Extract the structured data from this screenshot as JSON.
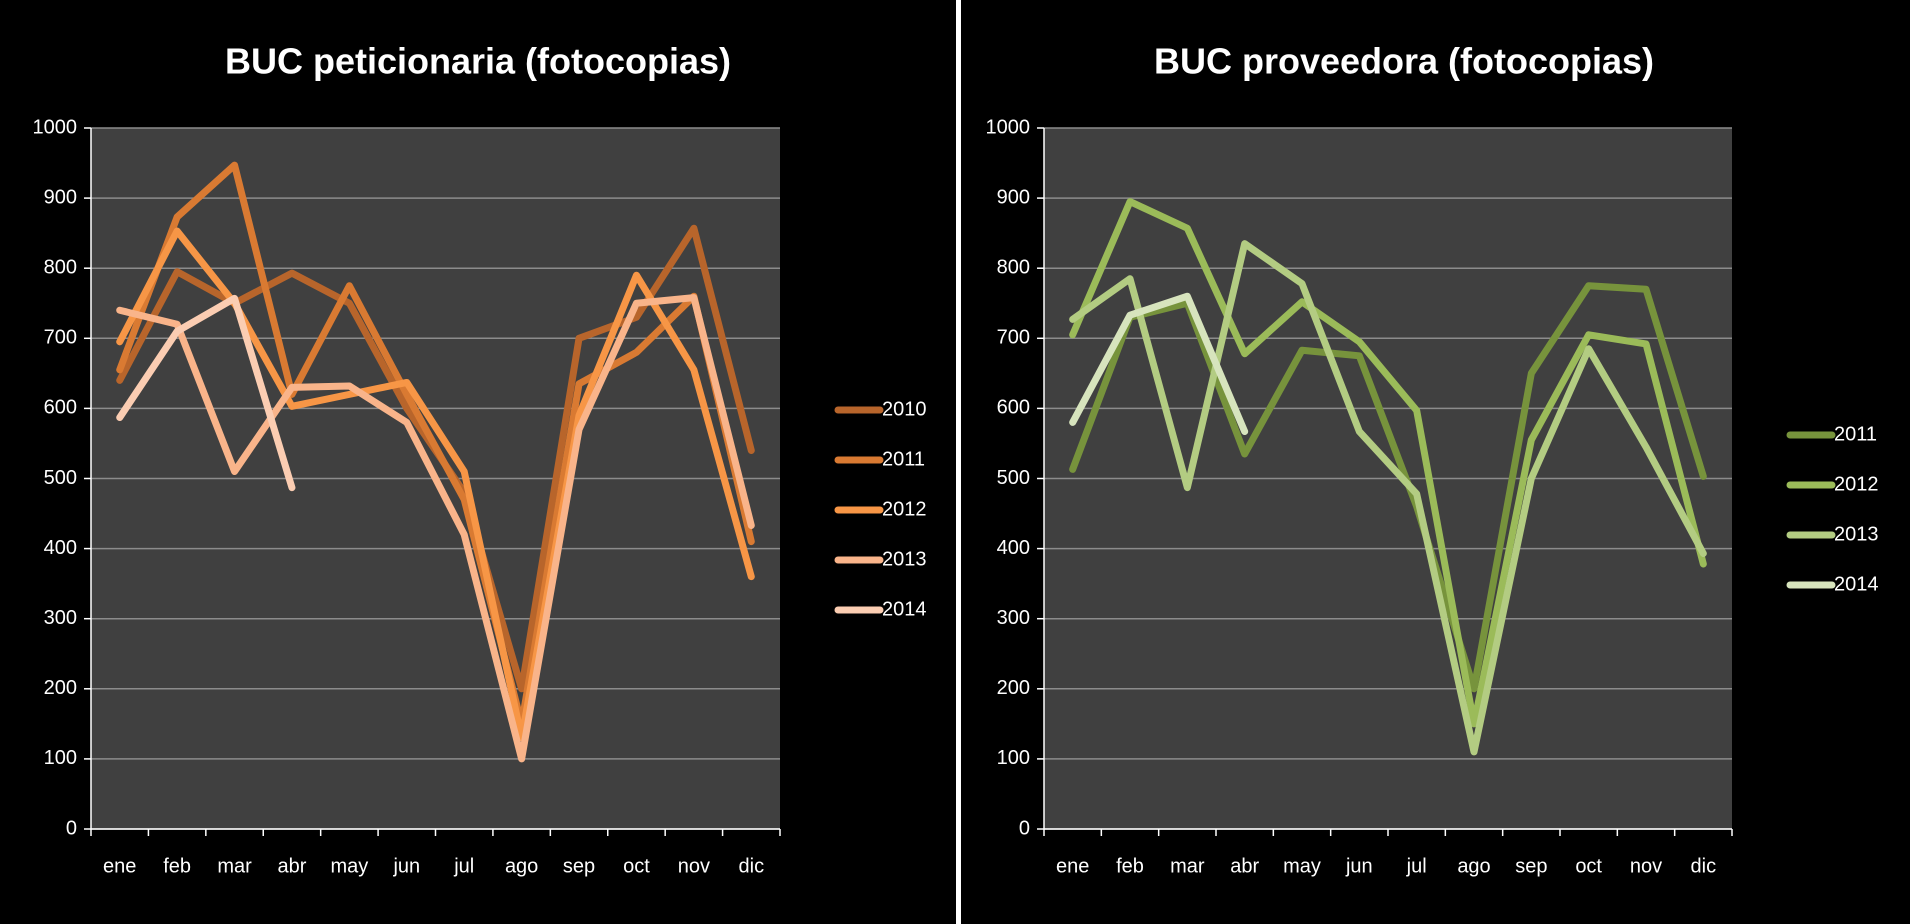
{
  "chart_data": [
    {
      "type": "line",
      "title": "BUC peticionaria (fotocopias)",
      "categories": [
        "ene",
        "feb",
        "mar",
        "abr",
        "may",
        "jun",
        "jul",
        "ago",
        "sep",
        "oct",
        "nov",
        "dic"
      ],
      "ylim": [
        0,
        1000
      ],
      "yticks": [
        0,
        100,
        200,
        300,
        400,
        500,
        600,
        700,
        800,
        900,
        1000
      ],
      "grid": true,
      "legend": "right",
      "series": [
        {
          "name": "2010",
          "color": "#b8652b",
          "values": [
            640,
            795,
            750,
            793,
            750,
            600,
            480,
            200,
            700,
            730,
            857,
            540
          ]
        },
        {
          "name": "2011",
          "color": "#d97a32",
          "values": [
            655,
            873,
            947,
            620,
            775,
            620,
            470,
            150,
            635,
            680,
            760,
            410
          ]
        },
        {
          "name": "2012",
          "color": "#f79646",
          "values": [
            695,
            853,
            750,
            603,
            620,
            637,
            510,
            130,
            590,
            790,
            655,
            360
          ]
        },
        {
          "name": "2013",
          "color": "#f9b48a",
          "values": [
            740,
            720,
            510,
            630,
            632,
            580,
            420,
            100,
            570,
            750,
            758,
            433
          ]
        },
        {
          "name": "2014",
          "color": "#fbcdb2",
          "values": [
            587,
            710,
            757,
            487,
            null,
            null,
            null,
            null,
            null,
            null,
            null,
            null
          ]
        }
      ]
    },
    {
      "type": "line",
      "title": "BUC proveedora (fotocopias)",
      "categories": [
        "ene",
        "feb",
        "mar",
        "abr",
        "may",
        "jun",
        "jul",
        "ago",
        "sep",
        "oct",
        "nov",
        "dic"
      ],
      "ylim": [
        0,
        1000
      ],
      "yticks": [
        0,
        100,
        200,
        300,
        400,
        500,
        600,
        700,
        800,
        900,
        1000
      ],
      "grid": true,
      "legend": "right",
      "series": [
        {
          "name": "2011",
          "color": "#77933c",
          "values": [
            513,
            730,
            750,
            535,
            683,
            675,
            460,
            200,
            650,
            775,
            770,
            503
          ]
        },
        {
          "name": "2012",
          "color": "#9bbb59",
          "values": [
            705,
            895,
            857,
            678,
            752,
            695,
            597,
            150,
            555,
            705,
            692,
            378
          ]
        },
        {
          "name": "2013",
          "color": "#b3cc82",
          "values": [
            727,
            785,
            487,
            835,
            778,
            567,
            478,
            110,
            500,
            685,
            545,
            393
          ]
        },
        {
          "name": "2014",
          "color": "#d7e4bd",
          "values": [
            580,
            733,
            760,
            567,
            null,
            null,
            null,
            null,
            null,
            null,
            null,
            null
          ]
        }
      ]
    }
  ]
}
